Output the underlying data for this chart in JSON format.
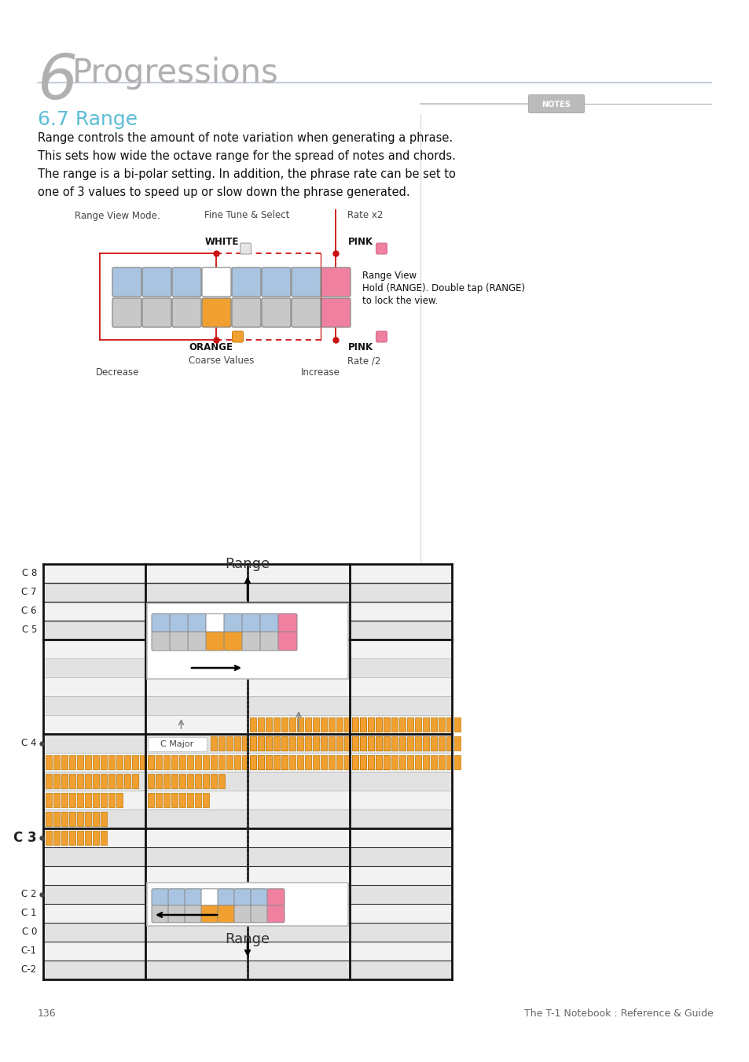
{
  "bg_color": "#ffffff",
  "chapter_num": "6",
  "chapter_title": "Progressions",
  "section_title": "6.7 Range",
  "section_color": "#5bbcd6",
  "body_text_lines": [
    "Range controls the amount of note variation when generating a phrase.",
    "This sets how wide the octave range for the spread of notes and chords.",
    "The range is a bi-polar setting. In addition, the phrase rate can be set to",
    "one of 3 values to speed up or slow down the phrase generated."
  ],
  "range_view_label": "Range View Mode.",
  "notes_label": "NOTES",
  "white_label": "WHITE",
  "white_sub": "Fine Tune & Select",
  "pink_label1": "PINK",
  "pink_sub1": "Rate x2",
  "orange_label": "ORANGE",
  "orange_sub": "Coarse Values",
  "pink_label2": "PINK",
  "pink_sub2": "Rate /2",
  "range_view_line1": "Range View",
  "range_view_line2": "Hold (RANGE). Double tap (RANGE)",
  "range_view_line3": "to lock the view.",
  "decrease_label": "Decrease",
  "increase_label": "Increase",
  "c_major_label": "C Major",
  "range_label": "Range",
  "page_num": "136",
  "footer_right": "The T-1 Notebook : Reference & Guide",
  "blue_color": "#a8c4e0",
  "orange_color": "#f0a030",
  "pink_color": "#f080a0",
  "white_btn_color": "#ffffff",
  "gray_btn_color": "#c8c8c8",
  "red_color": "#cc1111",
  "row_light": "#ebebeb",
  "row_dark": "#d8d8d8",
  "roll_outline": "#111111",
  "roll_thin": "#aaaaaa"
}
